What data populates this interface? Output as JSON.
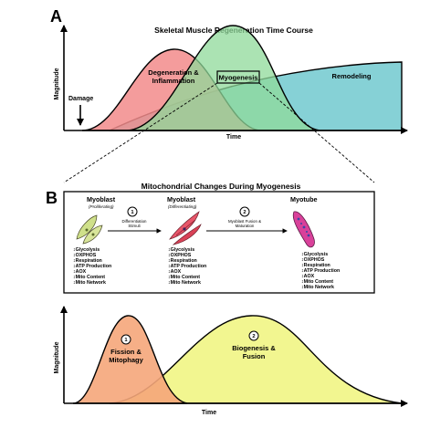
{
  "panel_a": {
    "letter": "A",
    "title": "Skeletal Muscle Regeneration Time Course",
    "y_axis_label": "Magnitude",
    "x_axis_label": "Time",
    "damage_label": "Damage",
    "phases": {
      "degeneration_line1": "Degeneration &",
      "degeneration_line2": "Inflammation",
      "myogenesis": "Myogenesis",
      "remodeling": "Remodeling"
    },
    "colors": {
      "degeneration": "#f28b8b",
      "myogenesis": "#8fd99a",
      "remodeling": "#7fcfd4"
    }
  },
  "panel_b": {
    "letter": "B",
    "title": "Mitochondrial Changes During Myogenesis",
    "stages": [
      {
        "title": "Myoblast",
        "subtitle": "(Proliferating)"
      },
      {
        "title": "Myoblast",
        "subtitle": "(Differentiating)"
      },
      {
        "title": "Myotube",
        "subtitle": ""
      }
    ],
    "steps": [
      {
        "number": "1",
        "line1": "Differentiation",
        "line2": "Stimuli"
      },
      {
        "number": "2",
        "line1": "Myoblast Fusion &",
        "line2": "Maturation"
      }
    ],
    "change_lists": [
      [
        "Glycolysis",
        "OXPHOS",
        "Respiration",
        "ATP Production",
        "AOX",
        "Mito Content",
        "Mito Network"
      ],
      [
        "Glycolysis",
        "OXPHOS",
        "Respiration",
        "ATP Production",
        "AOX",
        "Mito Content",
        "Mito Network"
      ],
      [
        "Glycolysis",
        "OXPHOS",
        "Respiration",
        "ATP Production",
        "AOX",
        "Mito Content",
        "Mito Network"
      ]
    ]
  },
  "panel_c": {
    "y_axis_label": "Magnitude",
    "x_axis_label": "Time",
    "phase1": {
      "number": "1",
      "line1": "Fission &",
      "line2": "Mitophagy"
    },
    "phase2": {
      "number": "2",
      "line1": "Biogenesis &",
      "line2": "Fusion"
    },
    "colors": {
      "fission": "#f5a67a",
      "biogenesis": "#f1f58a"
    }
  }
}
